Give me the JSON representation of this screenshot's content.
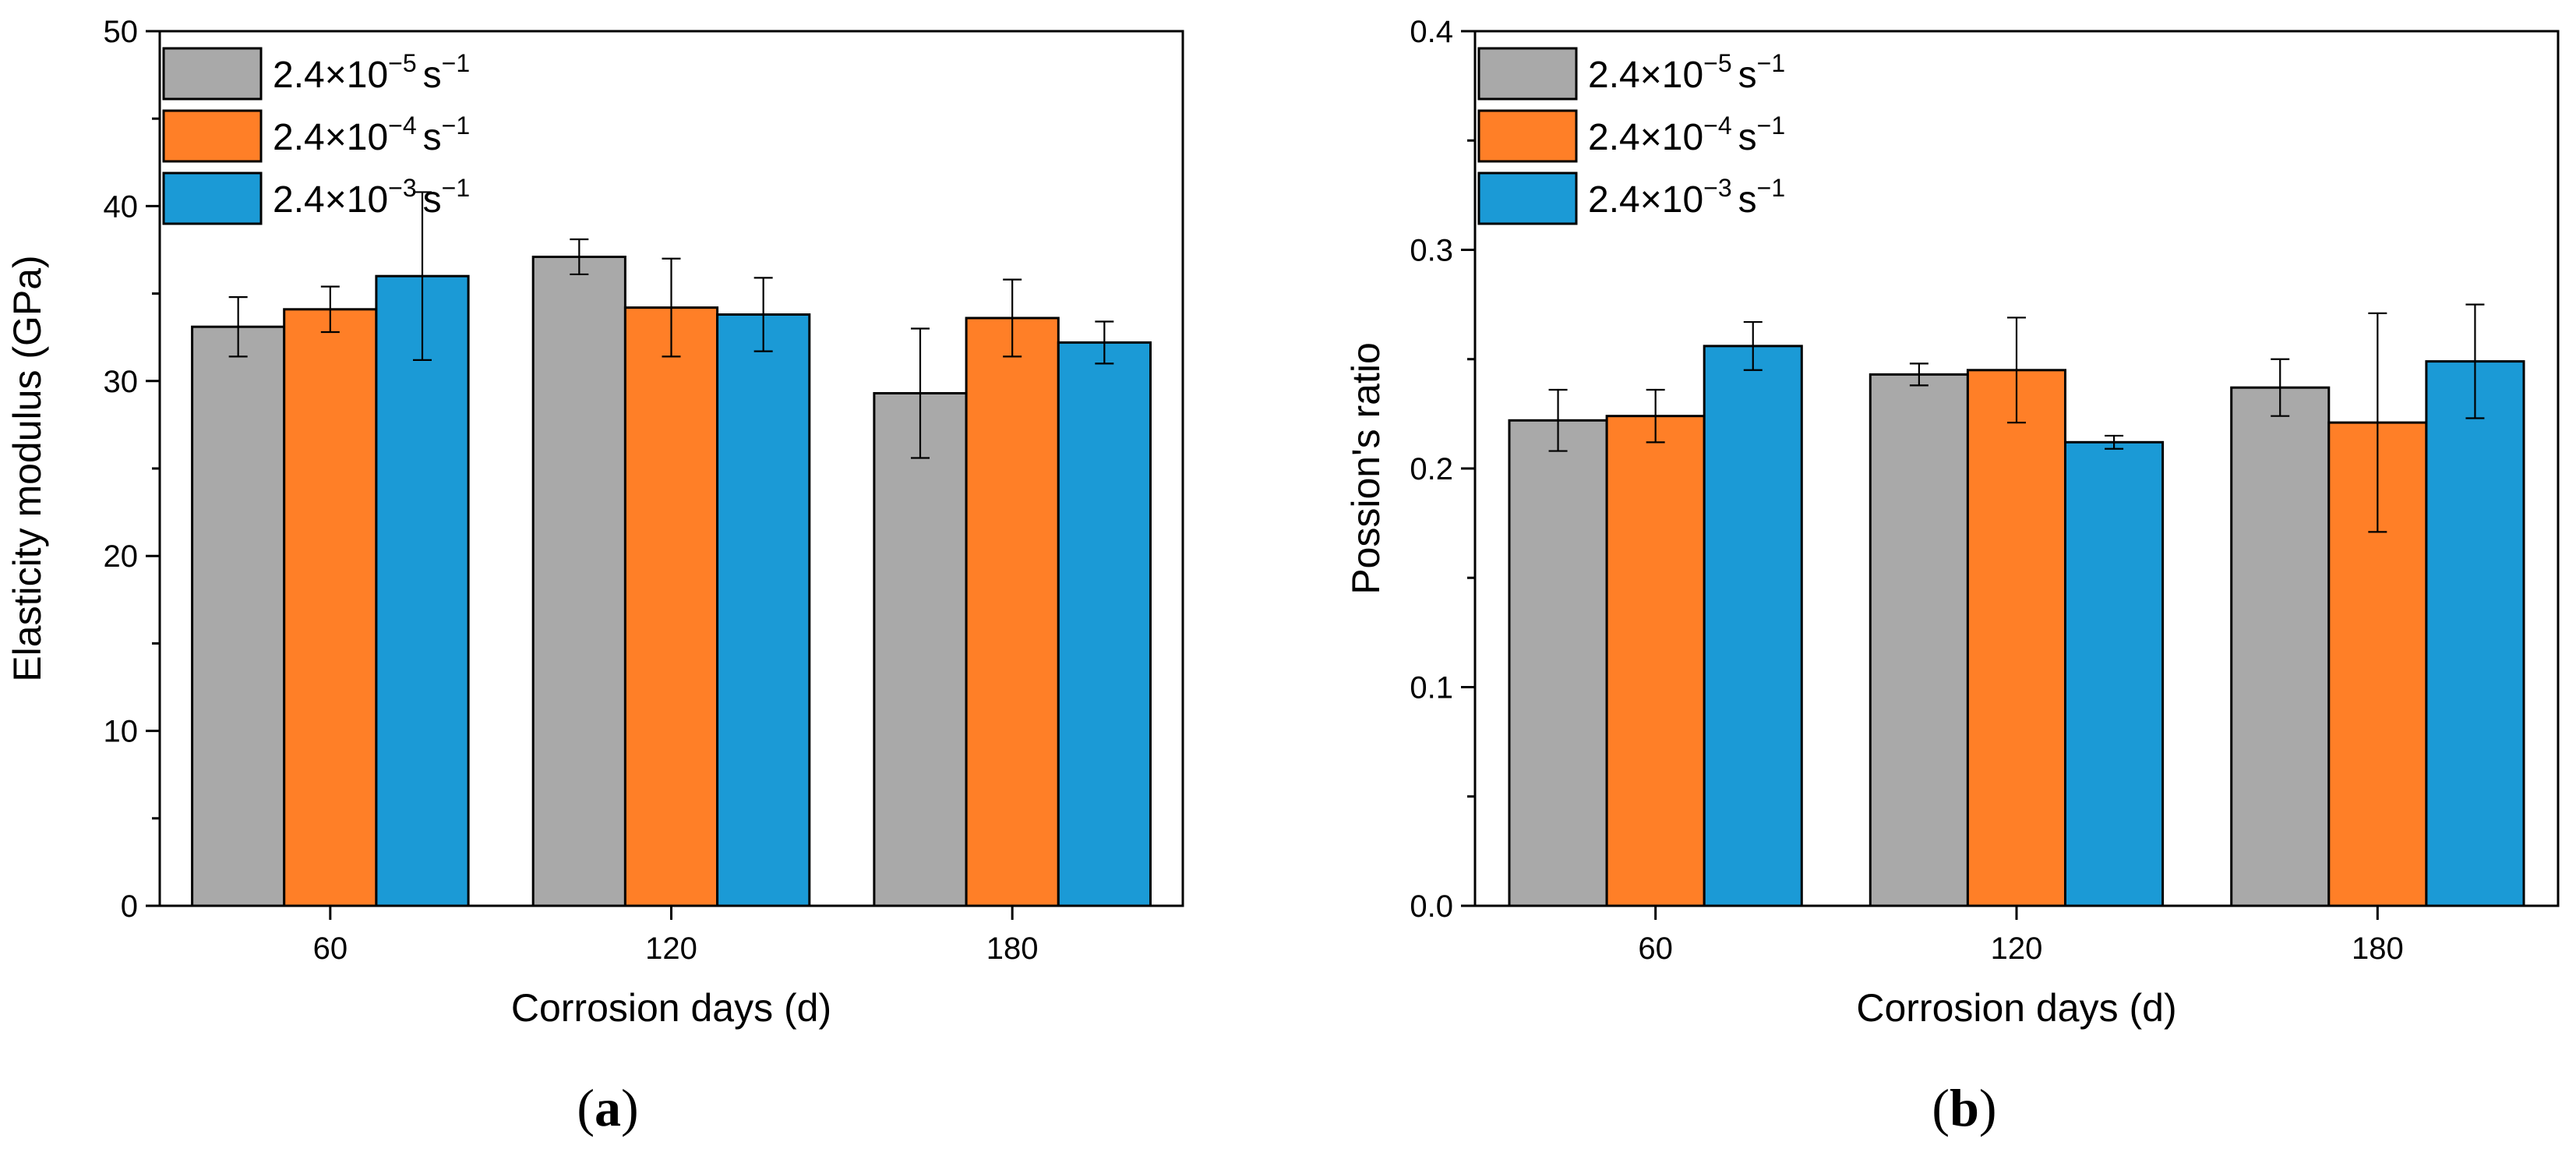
{
  "colors": {
    "series_1": "#A9A9A9",
    "series_2": "#FF7F27",
    "series_3": "#1B9AD6"
  },
  "chart_data": [
    {
      "type": "bar",
      "panel_label": "(a)",
      "panel_letter": "a",
      "xlabel": "Corrosion days (d)",
      "ylabel": "Elasticity modulus (GPa)",
      "categories": [
        "60",
        "120",
        "180"
      ],
      "ylim": [
        0,
        50
      ],
      "yticks": [
        0,
        10,
        20,
        30,
        40,
        50
      ],
      "ytick_labels": [
        "0",
        "10",
        "20",
        "30",
        "40",
        "50"
      ],
      "minor_tick_step": 5,
      "legend_position": "top-left",
      "series": [
        {
          "name": "2.4×10−5 s−1",
          "label_base": "2.4×10",
          "label_exp": "−5",
          "label_unit": "s",
          "label_unit_exp": "−1",
          "values": [
            33.1,
            37.1,
            29.3
          ],
          "errors": [
            1.7,
            1.0,
            3.7
          ]
        },
        {
          "name": "2.4×10−4 s−1",
          "label_base": "2.4×10",
          "label_exp": "−4",
          "label_unit": "s",
          "label_unit_exp": "−1",
          "values": [
            34.1,
            34.2,
            33.6
          ],
          "errors": [
            1.3,
            2.8,
            2.2
          ]
        },
        {
          "name": "2.4×10−3 s−1",
          "label_base": "2.4×10",
          "label_exp": "−3",
          "label_unit": "s",
          "label_unit_exp": "−1",
          "values": [
            36.0,
            33.8,
            32.2
          ],
          "errors": [
            4.8,
            2.1,
            1.2
          ]
        }
      ]
    },
    {
      "type": "bar",
      "panel_label": "(b)",
      "panel_letter": "b",
      "xlabel": "Corrosion days (d)",
      "ylabel": "Possion's ratio",
      "categories": [
        "60",
        "120",
        "180"
      ],
      "ylim": [
        0,
        0.4
      ],
      "yticks": [
        0,
        0.1,
        0.2,
        0.3,
        0.4
      ],
      "ytick_labels": [
        "0.0",
        "0.1",
        "0.2",
        "0.3",
        "0.4"
      ],
      "minor_tick_step": 0.05,
      "legend_position": "top-left",
      "series": [
        {
          "name": "2.4×10−5 s−1",
          "label_base": "2.4×10",
          "label_exp": "−5",
          "label_unit": "s",
          "label_unit_exp": "−1",
          "values": [
            0.222,
            0.243,
            0.237
          ],
          "errors": [
            0.014,
            0.005,
            0.013
          ]
        },
        {
          "name": "2.4×10−4 s−1",
          "label_base": "2.4×10",
          "label_exp": "−4",
          "label_unit": "s",
          "label_unit_exp": "−1",
          "values": [
            0.224,
            0.245,
            0.221
          ],
          "errors": [
            0.012,
            0.024,
            0.05
          ]
        },
        {
          "name": "2.4×10−3 s−1",
          "label_base": "2.4×10",
          "label_exp": "−3",
          "label_unit": "s",
          "label_unit_exp": "−1",
          "values": [
            0.256,
            0.212,
            0.249
          ],
          "errors": [
            0.011,
            0.003,
            0.026
          ]
        }
      ]
    }
  ]
}
